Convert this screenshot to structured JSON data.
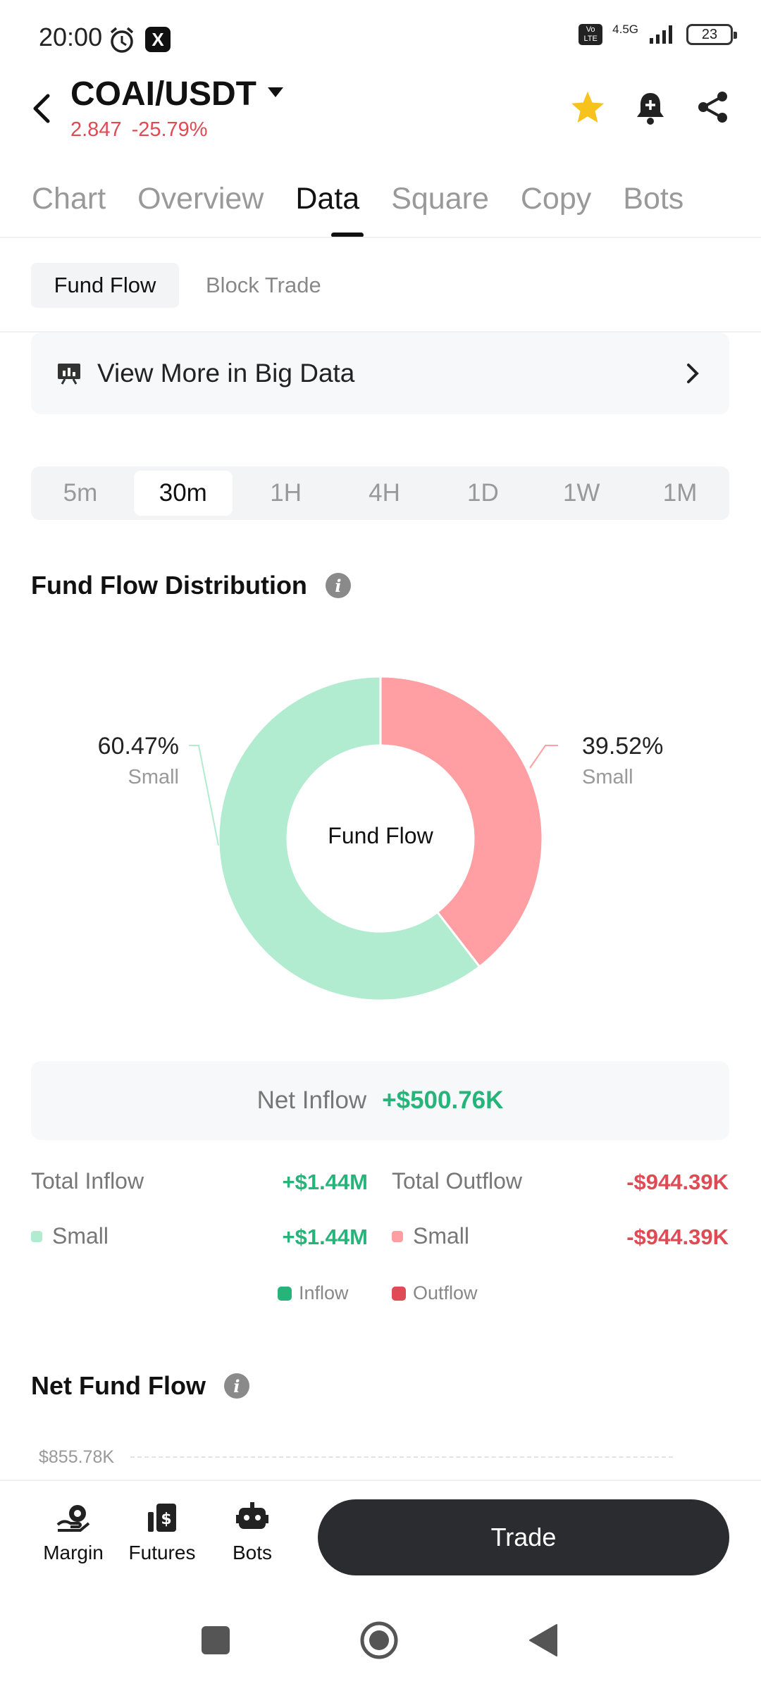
{
  "status_bar": {
    "time": "20:00",
    "network": "4.5G",
    "volte": "Vo LTE",
    "battery": "23"
  },
  "header": {
    "pair": "COAI/USDT",
    "price": "2.847",
    "change": "-25.79%"
  },
  "tabs": [
    "Chart",
    "Overview",
    "Data",
    "Square",
    "Copy",
    "Bots"
  ],
  "active_tab": "Data",
  "subtabs": {
    "active": "Fund Flow",
    "other": "Block Trade"
  },
  "big_data_link": "View More in Big Data",
  "intervals": [
    "5m",
    "30m",
    "1H",
    "4H",
    "1D",
    "1W",
    "1M"
  ],
  "active_interval": "30m",
  "distribution": {
    "title": "Fund Flow Distribution",
    "center_label": "Fund Flow",
    "left": {
      "pct": "60.47%",
      "label": "Small"
    },
    "right": {
      "pct": "39.52%",
      "label": "Small"
    }
  },
  "chart_data": {
    "type": "pie",
    "categories": [
      "Small (Inflow)",
      "Small (Outflow)"
    ],
    "values": [
      60.47,
      39.52
    ],
    "colors": [
      "#b1ecd0",
      "#ff9fa3"
    ]
  },
  "net_inflow": {
    "label": "Net Inflow",
    "value": "+$500.76K"
  },
  "totals": {
    "total_inflow_label": "Total Inflow",
    "total_inflow_value": "+$1.44M",
    "total_outflow_label": "Total Outflow",
    "total_outflow_value": "-$944.39K",
    "small_in_label": "Small",
    "small_in_value": "+$1.44M",
    "small_out_label": "Small",
    "small_out_value": "-$944.39K"
  },
  "legend": {
    "inflow": "Inflow",
    "outflow": "Outflow"
  },
  "net_fund_flow": {
    "title": "Net Fund Flow",
    "y_top_label": "$855.78K"
  },
  "bottom_nav": {
    "margin": "Margin",
    "futures": "Futures",
    "bots": "Bots",
    "trade": "Trade"
  },
  "colors": {
    "green": "#27b47a",
    "red": "#e04a55",
    "donut_green": "#b1ecd0",
    "donut_red": "#ff9fa3",
    "star": "#f7c21b"
  }
}
